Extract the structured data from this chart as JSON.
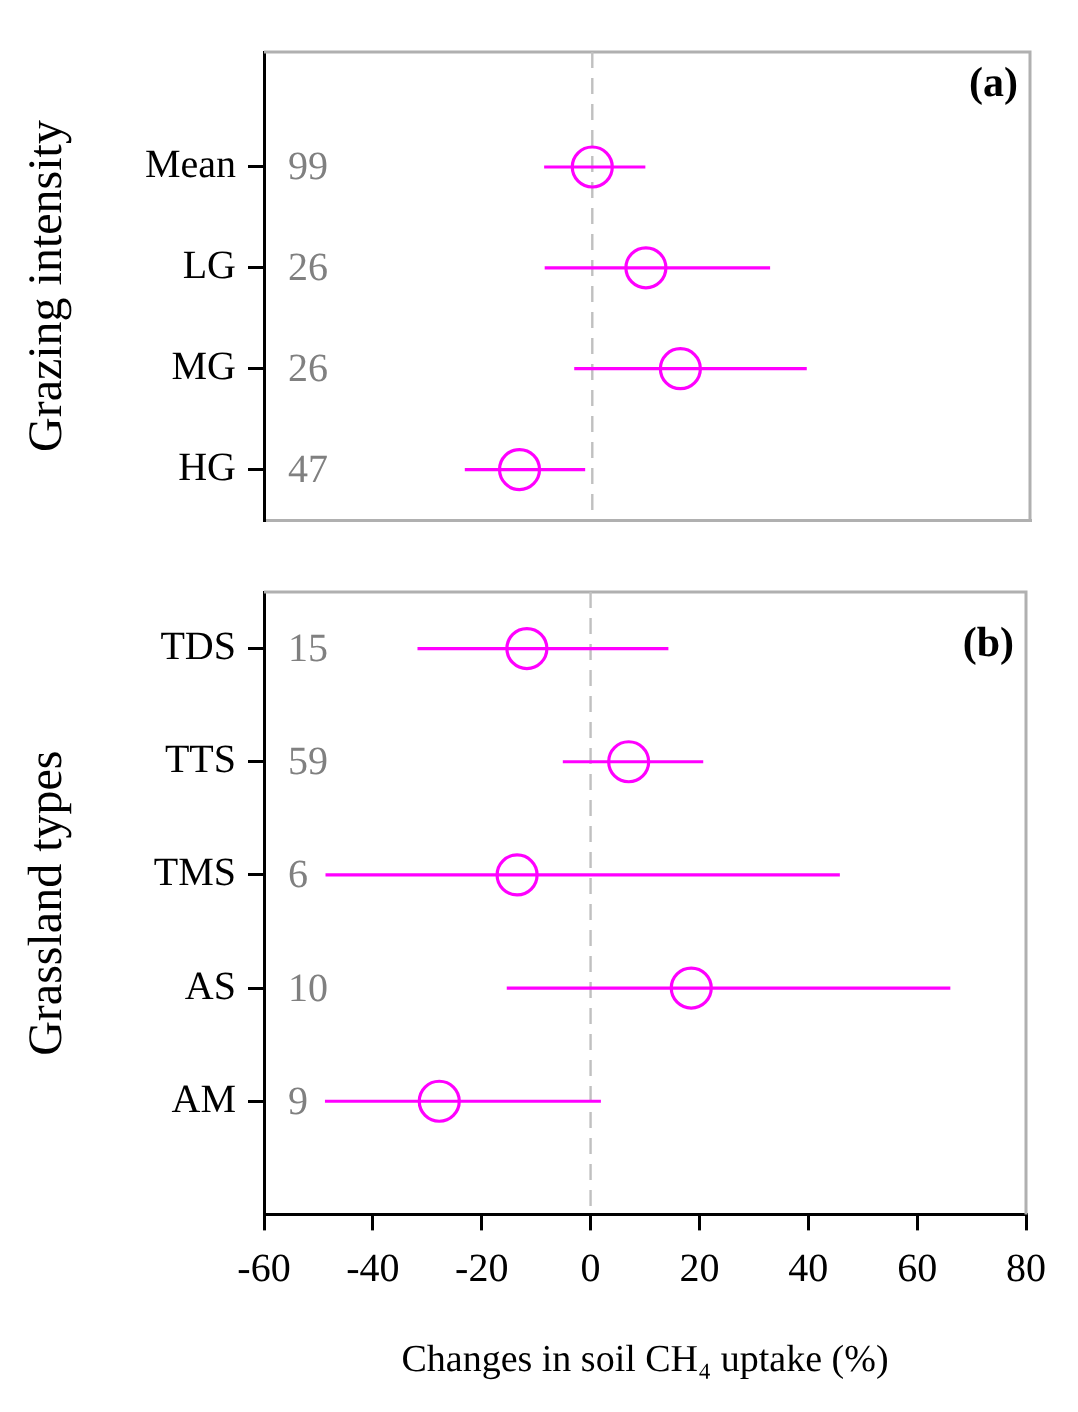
{
  "chart_data": [
    {
      "type": "scatter",
      "orientation": "horizontal",
      "ylabel": "Grazing intensity",
      "categories": [
        "Mean",
        "LG",
        "MG",
        "HG"
      ],
      "series": [
        {
          "color": "#ff00ff",
          "values": [
            0,
            9.8,
            16.1,
            -13.3
          ],
          "errors": [
            [
              -8.8,
              9.7
            ],
            [
              -8.7,
              32.5
            ],
            [
              -3.3,
              39.2
            ],
            [
              -23.3,
              -1.3
            ]
          ]
        }
      ],
      "xlim": [
        -60,
        80
      ],
      "xticks": [
        -60,
        -40,
        -20,
        0,
        20,
        40,
        60,
        80
      ],
      "tick_labels": "y",
      "marker": "circle",
      "ref_lines": [
        {
          "axis": "x",
          "value": 0,
          "color": "#c0c0c0",
          "line_style": "dashed"
        }
      ],
      "annotations": [
        "(a)",
        "99",
        "26",
        "26",
        "47"
      ]
    },
    {
      "type": "scatter",
      "orientation": "horizontal",
      "ylabel": "Grassland types",
      "xlabel": "Changes in soil CH₄ uptake (%)",
      "categories": [
        "TDS",
        "TTS",
        "TMS",
        "AS",
        "AM"
      ],
      "series": [
        {
          "color": "#ff00ff",
          "values": [
            -11.7,
            7.0,
            -13.5,
            18.5,
            -27.8
          ],
          "errors": [
            [
              -31.8,
              14.3
            ],
            [
              -5.1,
              20.7
            ],
            [
              -48.7,
              45.8
            ],
            [
              -15.4,
              66.1
            ],
            [
              -48.8,
              1.9
            ]
          ]
        }
      ],
      "xlim": [
        -60,
        80
      ],
      "xticks": [
        -60,
        -40,
        -20,
        0,
        20,
        40,
        60,
        80
      ],
      "marker": "circle",
      "ref_lines": [
        {
          "axis": "x",
          "value": 0,
          "color": "#c0c0c0",
          "line_style": "dashed"
        }
      ],
      "annotations": [
        "(b)",
        "15",
        "59",
        "6",
        "10",
        "9"
      ]
    }
  ]
}
